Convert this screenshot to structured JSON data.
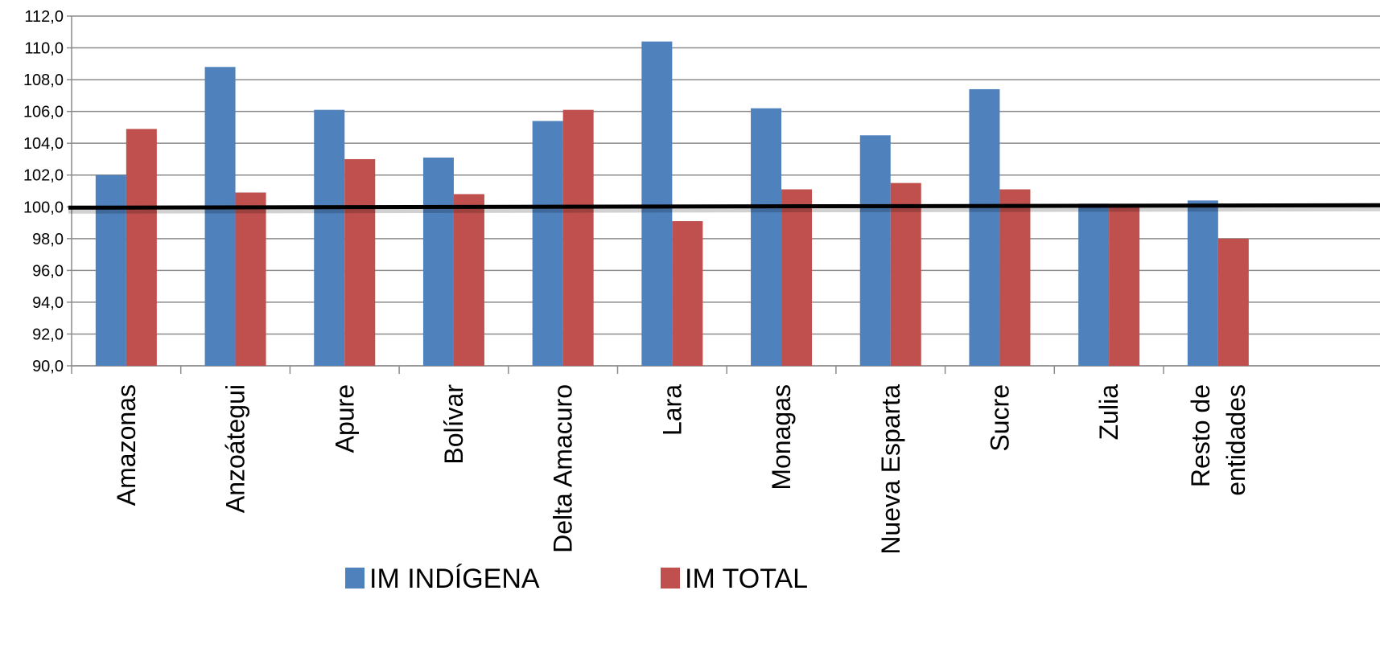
{
  "chart_data": {
    "type": "bar",
    "title": "",
    "xlabel": "",
    "ylabel": "",
    "ylim": [
      90,
      112
    ],
    "yticks": [
      "90,0",
      "92,0",
      "94,0",
      "96,0",
      "98,0",
      "100,0",
      "102,0",
      "104,0",
      "106,0",
      "108,0",
      "110,0",
      "112,0"
    ],
    "grid": true,
    "legend_position": "bottom",
    "reference_line": 100,
    "categories": [
      [
        "Amazonas"
      ],
      [
        "Anzoátegui"
      ],
      [
        "Apure"
      ],
      [
        "Bolívar"
      ],
      [
        "Delta Amacuro"
      ],
      [
        "Lara"
      ],
      [
        "Monagas"
      ],
      [
        "Nueva Esparta"
      ],
      [
        "Sucre"
      ],
      [
        "Zulia"
      ],
      [
        "Resto de",
        "entidades"
      ]
    ],
    "series": [
      {
        "name": "IM INDÍGENA",
        "color": "#4F81BD",
        "values": [
          102.0,
          108.8,
          106.1,
          103.1,
          105.4,
          110.4,
          106.2,
          104.5,
          107.4,
          100.2,
          100.4
        ]
      },
      {
        "name": "IM TOTAL",
        "color": "#C0504D",
        "values": [
          104.9,
          100.9,
          103.0,
          100.8,
          106.1,
          99.1,
          101.1,
          101.5,
          101.1,
          100.1,
          98.0
        ]
      }
    ]
  }
}
